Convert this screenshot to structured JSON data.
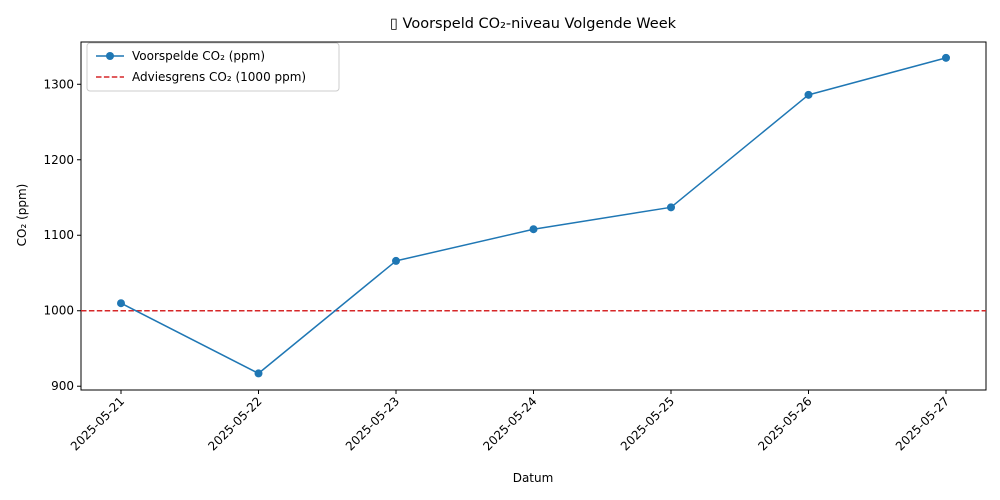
{
  "chart_data": {
    "type": "line",
    "title": "▯ Voorspeld CO₂-niveau Volgende Week",
    "xlabel": "Datum",
    "ylabel": "CO₂ (ppm)",
    "categories": [
      "2025-05-21",
      "2025-05-22",
      "2025-05-23",
      "2025-05-24",
      "2025-05-25",
      "2025-05-26",
      "2025-05-27"
    ],
    "series": [
      {
        "name": "Voorspelde CO₂ (ppm)",
        "values": [
          1010,
          917,
          1066,
          1108,
          1137,
          1286,
          1335
        ],
        "color": "#1f77b4",
        "style": "solid",
        "marker": "circle"
      }
    ],
    "reference_line": {
      "name": "Adviesgrens CO₂ (1000 ppm)",
      "value": 1000,
      "color": "#d62728",
      "style": "dashed"
    },
    "yticks": [
      900,
      1000,
      1100,
      1200,
      1300
    ],
    "ylim": [
      895,
      1356
    ],
    "grid": false,
    "legend_position": "top-left"
  }
}
